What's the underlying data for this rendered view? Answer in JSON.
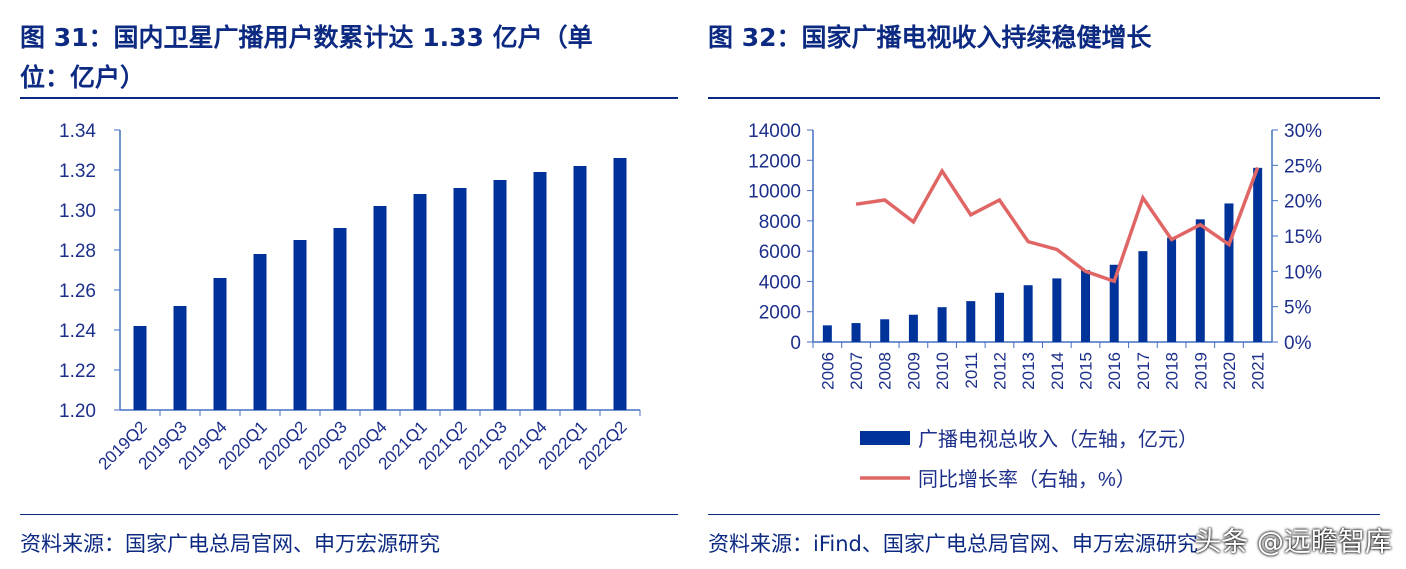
{
  "left": {
    "title_line1": "图 31：国内卫星广播用户数累计达 1.33 亿户（单",
    "title_line2": "位：亿户）",
    "source": "资料来源：国家广电总局官网、申万宏源研究"
  },
  "right": {
    "title": "图 32：国家广播电视收入持续稳健增长",
    "source": "资料来源：iFind、国家广电总局官网、申万宏源研究"
  },
  "watermark": "头条 @远瞻智库",
  "colors": {
    "bar": "#003399",
    "line": "#e06666",
    "axis": "#4472c4",
    "title": "#0d2a82"
  },
  "chart_data": [
    {
      "type": "bar",
      "categories": [
        "2019Q2",
        "2019Q3",
        "2019Q4",
        "2020Q1",
        "2020Q2",
        "2020Q3",
        "2020Q4",
        "2021Q1",
        "2021Q2",
        "2021Q3",
        "2021Q4",
        "2022Q1",
        "2022Q2"
      ],
      "values": [
        1.242,
        1.252,
        1.266,
        1.278,
        1.285,
        1.291,
        1.302,
        1.308,
        1.311,
        1.315,
        1.319,
        1.322,
        1.326
      ],
      "ylim": [
        1.2,
        1.34
      ],
      "yticks": [
        "1.20",
        "1.22",
        "1.24",
        "1.26",
        "1.28",
        "1.30",
        "1.32",
        "1.34"
      ],
      "grid": false
    },
    {
      "type": "bar+line",
      "categories": [
        "2006",
        "2007",
        "2008",
        "2009",
        "2010",
        "2011",
        "2012",
        "2013",
        "2014",
        "2015",
        "2016",
        "2017",
        "2018",
        "2019",
        "2020",
        "2021"
      ],
      "series": [
        {
          "name": "广播电视总收入（左轴，亿元）",
          "type": "bar",
          "axis": "left",
          "values": [
            1100,
            1250,
            1500,
            1800,
            2300,
            2700,
            3250,
            3750,
            4200,
            4750,
            5100,
            6000,
            6900,
            8100,
            9150,
            11500
          ]
        },
        {
          "name": "同比增长率（右轴，%）",
          "type": "line",
          "axis": "right",
          "values": [
            null,
            19.5,
            20.1,
            17.0,
            24.2,
            18.0,
            20.1,
            14.2,
            13.1,
            10.0,
            8.6,
            20.4,
            14.5,
            16.6,
            13.8,
            24.7
          ]
        }
      ],
      "ylim_left": [
        0,
        14000
      ],
      "yticks_left": [
        "0",
        "2000",
        "4000",
        "6000",
        "8000",
        "10000",
        "12000",
        "14000"
      ],
      "ylim_right": [
        0,
        30
      ],
      "yticks_right": [
        "0%",
        "5%",
        "10%",
        "15%",
        "20%",
        "25%",
        "30%"
      ],
      "legend": "bottom",
      "grid": false
    }
  ]
}
